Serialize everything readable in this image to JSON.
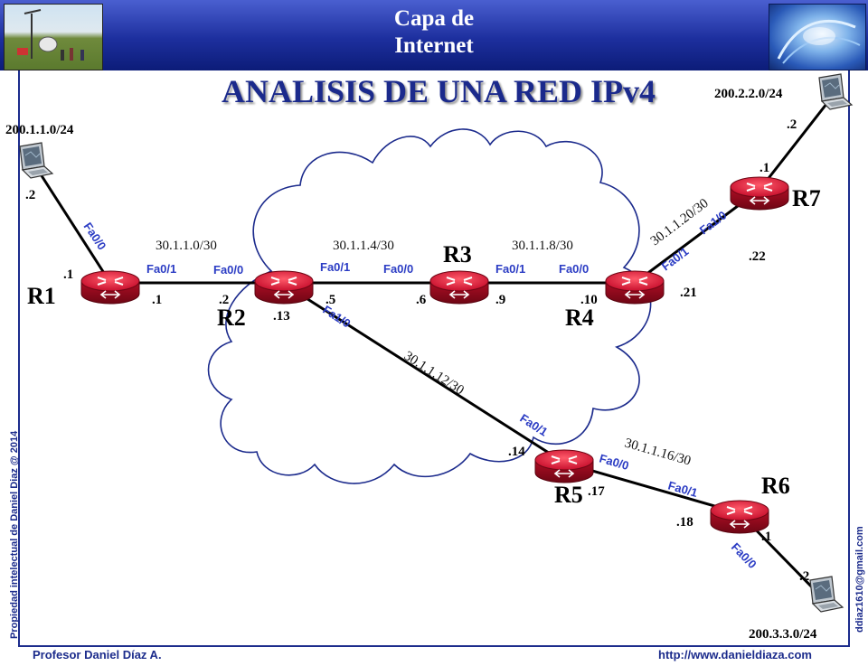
{
  "header": {
    "title_line1": "Capa de",
    "title_line2": "Internet"
  },
  "main_title": "ANALISIS DE UNA RED IPv4",
  "side_text_left": "Propiedad intelectual de Daniel Diaz @ 2014",
  "side_text_right": "ddiaz1610@gmail.com",
  "footer": {
    "author": "Profesor Daniel Díaz A.",
    "website": "http://www.danieldiaza.com"
  },
  "routers": {
    "r1": "R1",
    "r2": "R2",
    "r3": "R3",
    "r4": "R4",
    "r5": "R5",
    "r6": "R6",
    "r7": "R7"
  },
  "lan_networks": {
    "r1_lan": "200.1.1.0/24",
    "r7_lan": "200.2.2.0/24",
    "r6_lan": "200.3.3.0/24"
  },
  "wan_networks": {
    "r1_r2": "30.1.1.0/30",
    "r2_r3": "30.1.1.4/30",
    "r3_r4": "30.1.1.8/30",
    "r2_r5": "30.1.1.12/30",
    "r5_r6": "30.1.1.16/30",
    "r4_r7": "30.1.1.20/30"
  },
  "interfaces": {
    "r1_lan": "Fa0/0",
    "r1_wan": "Fa0/1",
    "r2_to_r1": "Fa0/0",
    "r2_to_r3": "Fa0/1",
    "r2_to_r5": "Fa1/0",
    "r3_to_r2": "Fa0/0",
    "r3_to_r4": "Fa0/1",
    "r4_to_r3": "Fa0/0",
    "r4_to_r7": "Fa0/1",
    "r7_to_r4": "Fa1/0",
    "r5_to_r2": "Fa0/1",
    "r5_to_r6": "Fa0/0",
    "r6_to_r5": "Fa0/1",
    "r6_lan": "Fa0/0"
  },
  "host_addresses": {
    "pc1": ".2",
    "r1_lan": ".1",
    "r1_wan": ".1",
    "r2_a": ".2",
    "r2_b": ".5",
    "r2_c": ".13",
    "r3_a": ".6",
    "r3_b": ".9",
    "r4_a": ".10",
    "r4_b": ".21",
    "r7_a": ".22",
    "r7_lan": ".1",
    "pc2": ".2",
    "r5_a": ".14",
    "r5_b": ".17",
    "r6_a": ".18",
    "r6_lan": ".1",
    "pc3": ".2"
  },
  "colors": {
    "header_blue": "#1d2f9e",
    "title_blue": "#1b2a8c",
    "interface_blue": "#2b3cc4",
    "router_red": "#c8102e"
  }
}
